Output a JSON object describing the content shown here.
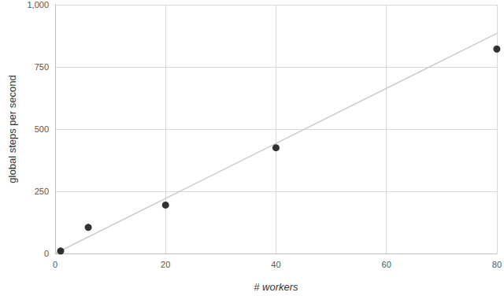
{
  "chart_data": {
    "type": "scatter",
    "x_label": "# workers",
    "y_label": "global steps per second",
    "series": [
      {
        "type": "scatter",
        "color": "#000000",
        "marker": "circle",
        "x": [
          1,
          6,
          20,
          40,
          80
        ],
        "values": [
          10,
          105,
          195,
          425,
          822
        ]
      },
      {
        "type": "line",
        "color": "#cccccc",
        "line_style": "solid",
        "x": [
          0,
          80
        ],
        "values": [
          0,
          885
        ]
      }
    ],
    "xlim": [
      0,
      80
    ],
    "xticks": [
      0,
      20,
      40,
      60,
      80
    ],
    "ylim": [
      0,
      1000
    ],
    "yticks": [
      0,
      250,
      500,
      750,
      1000
    ],
    "grid": true
  }
}
